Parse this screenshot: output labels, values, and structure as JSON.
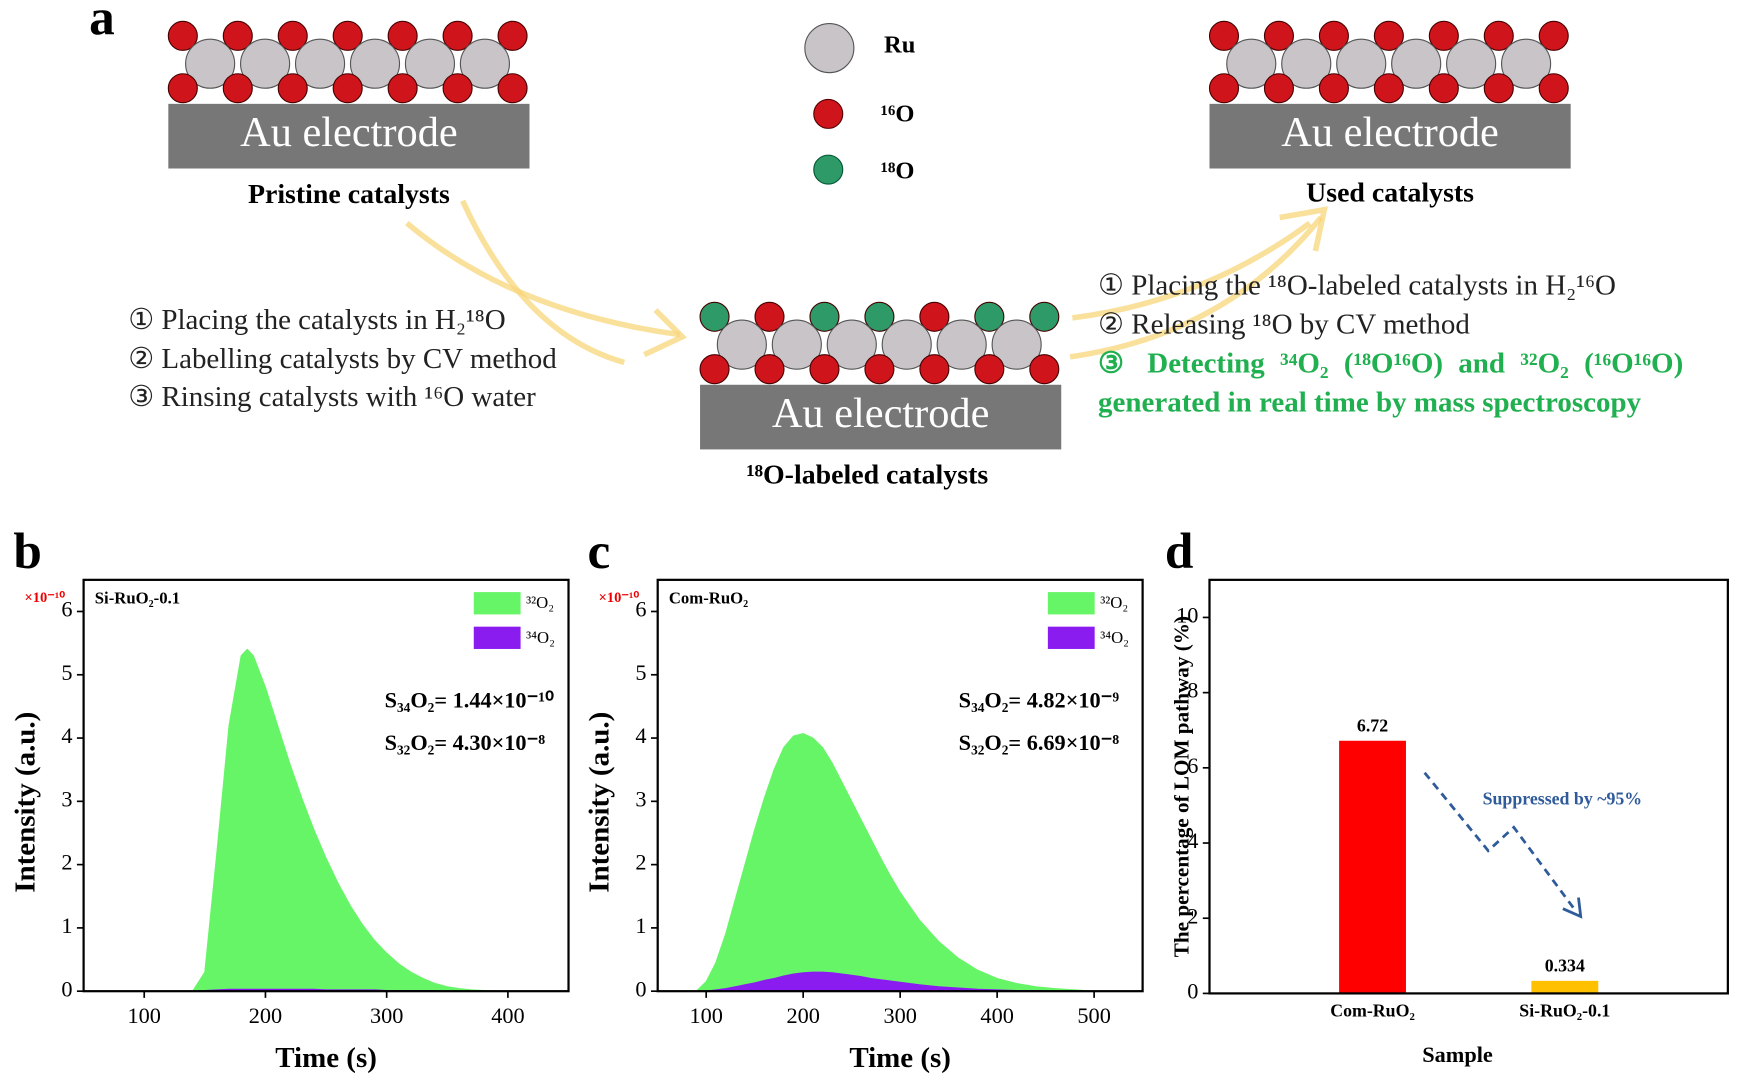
{
  "diagram": {
    "panel": "a",
    "legend": [
      "Ru",
      "¹⁶O",
      "¹⁸O"
    ],
    "electrode_label": "Au electrode",
    "stages": [
      "Pristine catalysts",
      "¹⁸O-labeled catalysts",
      "Used catalysts"
    ],
    "steps_label": [
      "① Placing the catalysts in H₂¹⁸O",
      "② Labelling catalysts by CV method",
      "③ Rinsing catalysts with ¹⁶O water"
    ],
    "steps_release": [
      "① Placing the ¹⁸O-labeled catalysts in H₂¹⁶O",
      "② Releasing ¹⁸O by CV method",
      "③ Detecting ³⁴O₂ (¹⁸O¹⁶O) and ³²O₂ (¹⁶O¹⁶O) generated in real time by mass spectroscopy"
    ]
  },
  "chart_data": [
    {
      "type": "area",
      "panel": "b",
      "label": "Si-RuO₂-0.1",
      "xlabel": "Time (s)",
      "ylabel": "Intensity (a.u.)",
      "y_multiplier": "×10⁻¹⁰",
      "x": [
        50,
        140,
        150,
        160,
        170,
        180,
        185,
        190,
        200,
        210,
        220,
        230,
        240,
        250,
        260,
        270,
        280,
        290,
        300,
        310,
        320,
        330,
        340,
        350,
        360,
        370,
        380,
        390,
        450
      ],
      "series": [
        {
          "name": "³²O₂",
          "color": "#66f566",
          "values": [
            0,
            0,
            0.3,
            2.2,
            4.2,
            5.3,
            5.4,
            5.3,
            4.8,
            4.2,
            3.6,
            3.05,
            2.55,
            2.1,
            1.7,
            1.35,
            1.05,
            0.8,
            0.6,
            0.43,
            0.3,
            0.2,
            0.12,
            0.07,
            0.04,
            0.02,
            0.01,
            0,
            0
          ]
        },
        {
          "name": "³⁴O₂",
          "color": "#8a1cf0",
          "values": [
            0,
            0,
            0.01,
            0.02,
            0.03,
            0.03,
            0.03,
            0.03,
            0.03,
            0.03,
            0.03,
            0.03,
            0.03,
            0.02,
            0.02,
            0.02,
            0.02,
            0.02,
            0.01,
            0.01,
            0.01,
            0.01,
            0.01,
            0,
            0,
            0,
            0,
            0,
            0
          ]
        }
      ],
      "xlim": [
        50,
        450
      ],
      "ylim": [
        0,
        6.5
      ],
      "xticks": [
        100,
        200,
        300,
        400
      ],
      "yticks": [
        0,
        1,
        2,
        3,
        4,
        5,
        6
      ],
      "annotations": [
        "S₃₄O₂= 1.44×10⁻¹⁰",
        "S₃₂O₂= 4.30×10⁻⁸"
      ]
    },
    {
      "type": "area",
      "panel": "c",
      "label": "Com-RuO₂",
      "xlabel": "Time (s)",
      "ylabel": "Intensity (a.u.)",
      "y_multiplier": "×10⁻¹⁰",
      "x": [
        50,
        90,
        100,
        110,
        120,
        130,
        140,
        150,
        160,
        170,
        180,
        190,
        200,
        210,
        220,
        230,
        240,
        250,
        260,
        270,
        280,
        290,
        300,
        320,
        340,
        360,
        380,
        400,
        420,
        440,
        460,
        480,
        500,
        550
      ],
      "series": [
        {
          "name": "³²O₂",
          "color": "#66f566",
          "values": [
            0,
            0,
            0.15,
            0.45,
            0.9,
            1.45,
            2.0,
            2.55,
            3.05,
            3.5,
            3.85,
            4.03,
            4.07,
            4.0,
            3.85,
            3.6,
            3.3,
            3.0,
            2.7,
            2.4,
            2.1,
            1.82,
            1.56,
            1.12,
            0.78,
            0.52,
            0.33,
            0.2,
            0.12,
            0.07,
            0.04,
            0.02,
            0,
            0
          ]
        },
        {
          "name": "³⁴O₂",
          "color": "#8a1cf0",
          "values": [
            0,
            0,
            0,
            0.02,
            0.04,
            0.07,
            0.1,
            0.13,
            0.17,
            0.2,
            0.24,
            0.27,
            0.29,
            0.3,
            0.3,
            0.29,
            0.27,
            0.25,
            0.23,
            0.2,
            0.18,
            0.16,
            0.14,
            0.1,
            0.07,
            0.05,
            0.03,
            0.02,
            0.01,
            0.01,
            0,
            0,
            0,
            0
          ]
        }
      ],
      "xlim": [
        50,
        550
      ],
      "ylim": [
        0,
        6.5
      ],
      "xticks": [
        100,
        200,
        300,
        400,
        500
      ],
      "yticks": [
        0,
        1,
        2,
        3,
        4,
        5,
        6
      ],
      "annotations": [
        "S₃₄O₂= 4.82×10⁻⁹",
        "S₃₂O₂= 6.69×10⁻⁸"
      ]
    },
    {
      "type": "bar",
      "panel": "d",
      "xlabel": "Sample",
      "ylabel": "The percentage of LOM pathway (%)",
      "categories": [
        "Com-RuO₂",
        "Si-RuO₂-0.1"
      ],
      "values": [
        6.72,
        0.334
      ],
      "colors": [
        "#ff0000",
        "#ffc000"
      ],
      "ylim": [
        0,
        11
      ],
      "yticks": [
        0,
        2,
        4,
        6,
        8,
        10
      ],
      "annotation": "Suppressed by ~95%"
    }
  ]
}
